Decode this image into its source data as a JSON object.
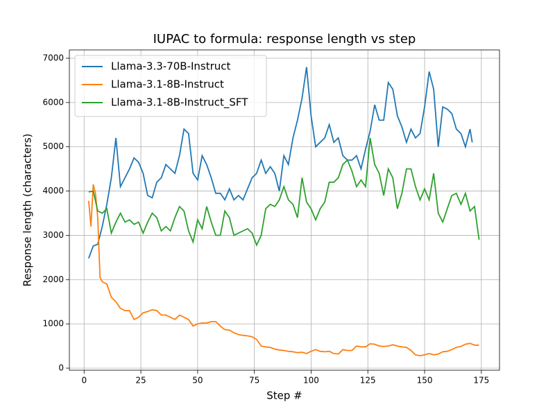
{
  "chart_data": {
    "type": "line",
    "title": "IUPAC to formula: response length vs step",
    "xlabel": "Step #",
    "ylabel": "Response length (characters)",
    "xlim": [
      -6.5,
      183
    ],
    "ylim": [
      -47,
      7188
    ],
    "xticks": [
      0,
      25,
      50,
      75,
      100,
      125,
      150,
      175
    ],
    "yticks": [
      0,
      1000,
      2000,
      3000,
      4000,
      5000,
      6000,
      7000
    ],
    "grid": true,
    "legend": "upper-left",
    "series": [
      {
        "name": "Llama-3.3-70B-Instruct",
        "color": "#1f77b4",
        "x": [
          2,
          4,
          6,
          8,
          10,
          12,
          14,
          16,
          18,
          20,
          22,
          24,
          26,
          28,
          30,
          32,
          34,
          36,
          38,
          40,
          42,
          44,
          46,
          48,
          50,
          52,
          54,
          56,
          58,
          60,
          62,
          64,
          66,
          68,
          70,
          72,
          74,
          76,
          78,
          80,
          82,
          84,
          86,
          88,
          90,
          92,
          94,
          96,
          98,
          100,
          102,
          104,
          106,
          108,
          110,
          112,
          114,
          116,
          118,
          120,
          122,
          124,
          126,
          128,
          130,
          132,
          134,
          136,
          138,
          140,
          142,
          144,
          146,
          148,
          150,
          152,
          154,
          156,
          158,
          160,
          162,
          164,
          166,
          168,
          170,
          171
        ],
        "values": [
          2480,
          2760,
          2800,
          3200,
          3700,
          4300,
          5200,
          4100,
          4300,
          4500,
          4750,
          4650,
          4400,
          3900,
          3850,
          4200,
          4300,
          4600,
          4500,
          4400,
          4800,
          5400,
          5300,
          4400,
          4250,
          4800,
          4600,
          4300,
          3950,
          3950,
          3800,
          4050,
          3800,
          3900,
          3800,
          4050,
          4300,
          4400,
          4700,
          4400,
          4550,
          4400,
          4000,
          4800,
          4600,
          5200,
          5600,
          6100,
          6800,
          5700,
          5000,
          5100,
          5200,
          5500,
          5100,
          5200,
          4800,
          4700,
          4700,
          4800,
          4500,
          4950,
          5350,
          5950,
          5600,
          5600,
          6450,
          6300,
          5700,
          5450,
          5100,
          5400,
          5200,
          5300,
          5900,
          6700,
          6300,
          5000,
          5900,
          5850,
          5750,
          5400,
          5300,
          5000,
          5400,
          5100
        ]
      },
      {
        "name": "Llama-3.1-8B-Instruct",
        "color": "#ff7f0e",
        "x": [
          2,
          3,
          4,
          5,
          6,
          7,
          8,
          10,
          12,
          14,
          16,
          18,
          20,
          22,
          24,
          26,
          28,
          30,
          32,
          34,
          36,
          38,
          40,
          42,
          44,
          46,
          48,
          50,
          52,
          54,
          56,
          58,
          60,
          62,
          64,
          66,
          68,
          70,
          72,
          74,
          76,
          78,
          80,
          82,
          84,
          86,
          88,
          90,
          92,
          94,
          96,
          98,
          100,
          102,
          104,
          106,
          108,
          110,
          112,
          114,
          116,
          118,
          120,
          122,
          124,
          126,
          128,
          130,
          132,
          134,
          136,
          138,
          140,
          142,
          144,
          146,
          148,
          150,
          152,
          154,
          156,
          158,
          160,
          162,
          164,
          166,
          168,
          170,
          172,
          174
        ],
        "values": [
          3780,
          3200,
          4150,
          3950,
          3400,
          2050,
          1950,
          1900,
          1600,
          1500,
          1350,
          1300,
          1300,
          1100,
          1150,
          1250,
          1280,
          1320,
          1300,
          1200,
          1200,
          1150,
          1100,
          1200,
          1150,
          1100,
          950,
          1000,
          1020,
          1020,
          1050,
          1050,
          950,
          870,
          860,
          800,
          760,
          740,
          730,
          710,
          650,
          500,
          480,
          470,
          430,
          410,
          400,
          380,
          370,
          350,
          360,
          330,
          380,
          420,
          380,
          370,
          380,
          330,
          320,
          420,
          400,
          400,
          500,
          480,
          480,
          550,
          540,
          500,
          490,
          500,
          530,
          500,
          480,
          470,
          400,
          300,
          280,
          300,
          330,
          300,
          320,
          370,
          380,
          420,
          470,
          490,
          540,
          560,
          520,
          520
        ]
      },
      {
        "name": "Llama-3.1-8B-Instruct_SFT",
        "color": "#2ca02c",
        "x": [
          2,
          4,
          6,
          8,
          10,
          12,
          14,
          16,
          18,
          20,
          22,
          24,
          26,
          28,
          30,
          32,
          34,
          36,
          38,
          40,
          42,
          44,
          46,
          48,
          50,
          52,
          54,
          56,
          58,
          60,
          62,
          64,
          66,
          68,
          70,
          72,
          74,
          76,
          78,
          80,
          82,
          84,
          86,
          88,
          90,
          92,
          94,
          96,
          98,
          100,
          102,
          104,
          106,
          108,
          110,
          112,
          114,
          116,
          118,
          120,
          122,
          124,
          126,
          128,
          130,
          132,
          134,
          136,
          138,
          140,
          142,
          144,
          146,
          148,
          150,
          152,
          154,
          156,
          158,
          160,
          162,
          164,
          166,
          168,
          170,
          172,
          174
        ],
        "values": [
          3980,
          4000,
          3550,
          3500,
          3600,
          3050,
          3300,
          3500,
          3300,
          3350,
          3250,
          3300,
          3050,
          3300,
          3500,
          3400,
          3100,
          3200,
          3100,
          3400,
          3650,
          3550,
          3100,
          2850,
          3350,
          3150,
          3650,
          3300,
          3000,
          3000,
          3550,
          3400,
          3000,
          3050,
          3100,
          3150,
          3050,
          2780,
          3000,
          3600,
          3700,
          3650,
          3800,
          4100,
          3800,
          3700,
          3400,
          4300,
          3750,
          3600,
          3350,
          3600,
          3750,
          4200,
          4200,
          4300,
          4600,
          4700,
          4450,
          4100,
          4250,
          4100,
          5200,
          4600,
          4400,
          3900,
          4500,
          4300,
          3600,
          3950,
          4500,
          4500,
          4100,
          3800,
          4050,
          3800,
          4400,
          3500,
          3300,
          3600,
          3900,
          3950,
          3700,
          3950,
          3550,
          3650,
          2900
        ]
      }
    ]
  }
}
